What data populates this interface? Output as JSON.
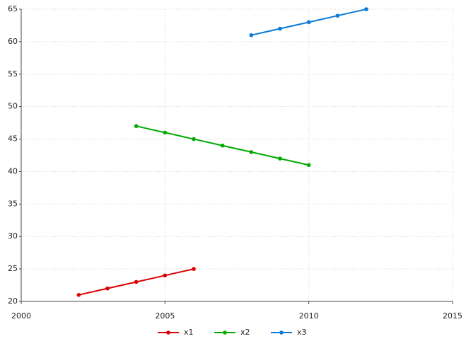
{
  "chart_data": {
    "type": "line",
    "series": [
      {
        "name": "x1",
        "color": "#dd0000",
        "x": [
          2002,
          2003,
          2004,
          2005,
          2006
        ],
        "values": [
          21,
          22,
          23,
          24,
          25
        ]
      },
      {
        "name": "x2",
        "color": "#00aa00",
        "x": [
          2004,
          2005,
          2006,
          2007,
          2008,
          2009,
          2010
        ],
        "values": [
          47,
          46,
          45,
          44,
          43,
          42,
          41
        ]
      },
      {
        "name": "x3",
        "color": "#0b7ad6",
        "x": [
          2008,
          2009,
          2010,
          2011,
          2012
        ],
        "values": [
          61,
          62,
          63,
          64,
          65
        ]
      }
    ],
    "xlim": [
      2000,
      2015
    ],
    "xticks": [
      2000,
      2005,
      2010,
      2015
    ],
    "ylim": [
      20,
      65
    ],
    "yticks": [
      20,
      25,
      30,
      35,
      40,
      45,
      50,
      55,
      60,
      65
    ],
    "grid": true,
    "legend": "bottom"
  }
}
